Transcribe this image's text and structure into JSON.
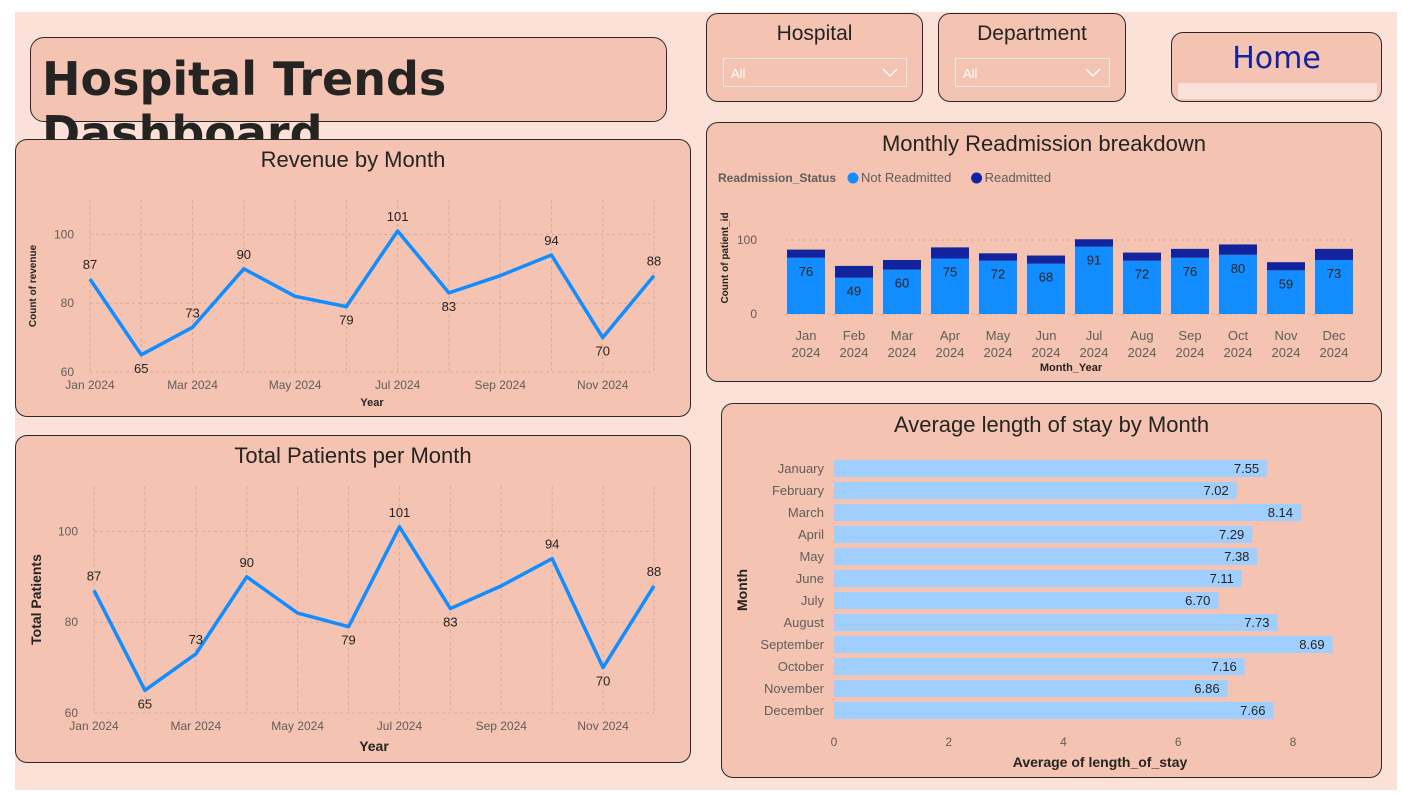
{
  "dashboard": {
    "title": "Hospital Trends Dashboard",
    "home_label": "Home"
  },
  "filters": {
    "hospital": {
      "label": "Hospital",
      "value": "All"
    },
    "department": {
      "label": "Department",
      "value": "All"
    }
  },
  "chart_data": [
    {
      "id": "revenue",
      "type": "line",
      "title": "Revenue by Month",
      "xlabel": "Year",
      "ylabel": "Count of revenue",
      "x": [
        "Jan 2024",
        "Feb 2024",
        "Mar 2024",
        "Apr 2024",
        "May 2024",
        "Jun 2024",
        "Jul 2024",
        "Aug 2024",
        "Sep 2024",
        "Oct 2024",
        "Nov 2024",
        "Dec 2024"
      ],
      "values": [
        87,
        65,
        73,
        90,
        82,
        79,
        101,
        83,
        88,
        94,
        70,
        88
      ],
      "data_labels": [
        87,
        65,
        73,
        90,
        null,
        79,
        101,
        83,
        null,
        94,
        70,
        88
      ],
      "x_ticks": [
        "Jan 2024",
        "Mar 2024",
        "May 2024",
        "Jul 2024",
        "Sep 2024",
        "Nov 2024"
      ],
      "y_ticks": [
        60,
        80,
        100
      ],
      "ylim": [
        60,
        110
      ],
      "color": "#118dff"
    },
    {
      "id": "patients",
      "type": "line",
      "title": "Total Patients per Month",
      "xlabel": "Year",
      "ylabel": "Total Patients",
      "x": [
        "Jan 2024",
        "Feb 2024",
        "Mar 2024",
        "Apr 2024",
        "May 2024",
        "Jun 2024",
        "Jul 2024",
        "Aug 2024",
        "Sep 2024",
        "Oct 2024",
        "Nov 2024",
        "Dec 2024"
      ],
      "values": [
        87,
        65,
        73,
        90,
        82,
        79,
        101,
        83,
        88,
        94,
        70,
        88
      ],
      "data_labels": [
        87,
        65,
        73,
        90,
        null,
        79,
        101,
        83,
        null,
        94,
        70,
        88
      ],
      "x_ticks": [
        "Jan 2024",
        "Mar 2024",
        "May 2024",
        "Jul 2024",
        "Sep 2024",
        "Nov 2024"
      ],
      "y_ticks": [
        60,
        80,
        100
      ],
      "ylim": [
        60,
        110
      ],
      "color": "#118dff"
    },
    {
      "id": "readmission",
      "type": "bar",
      "stacked": true,
      "title": "Monthly Readmission breakdown",
      "legend_title": "Readmission_Status",
      "xlabel": "Month_Year",
      "ylabel": "Count of patient_id",
      "categories": [
        [
          "Jan",
          "2024"
        ],
        [
          "Feb",
          "2024"
        ],
        [
          "Mar",
          "2024"
        ],
        [
          "Apr",
          "2024"
        ],
        [
          "May",
          "2024"
        ],
        [
          "Jun",
          "2024"
        ],
        [
          "Jul",
          "2024"
        ],
        [
          "Aug",
          "2024"
        ],
        [
          "Sep",
          "2024"
        ],
        [
          "Oct",
          "2024"
        ],
        [
          "Nov",
          "2024"
        ],
        [
          "Dec",
          "2024"
        ]
      ],
      "series": [
        {
          "name": "Not Readmitted",
          "color": "#118dff",
          "values": [
            76,
            49,
            60,
            75,
            72,
            68,
            91,
            72,
            76,
            80,
            59,
            73
          ]
        },
        {
          "name": "Readmitted",
          "color": "#12239e",
          "values": [
            11,
            16,
            13,
            15,
            10,
            11,
            10,
            11,
            12,
            14,
            11,
            15
          ]
        }
      ],
      "y_ticks": [
        0,
        100
      ],
      "ylim": [
        0,
        130
      ]
    },
    {
      "id": "los",
      "type": "bar",
      "orientation": "horizontal",
      "title": "Average length of stay by Month",
      "xlabel": "Average of length_of_stay",
      "ylabel": "Month",
      "categories": [
        "January",
        "February",
        "March",
        "April",
        "May",
        "June",
        "July",
        "August",
        "September",
        "October",
        "November",
        "December"
      ],
      "values": [
        7.55,
        7.02,
        8.14,
        7.29,
        7.38,
        7.11,
        6.7,
        7.73,
        8.69,
        7.16,
        6.86,
        7.66
      ],
      "value_labels": [
        "7.55",
        "7.02",
        "8.14",
        "7.29",
        "7.38",
        "7.11",
        "6.70",
        "7.73",
        "8.69",
        "7.16",
        "6.86",
        "7.66"
      ],
      "x_ticks": [
        0,
        2,
        4,
        6,
        8
      ],
      "xlim": [
        0,
        9.1
      ],
      "color": "#a0cfff"
    }
  ]
}
